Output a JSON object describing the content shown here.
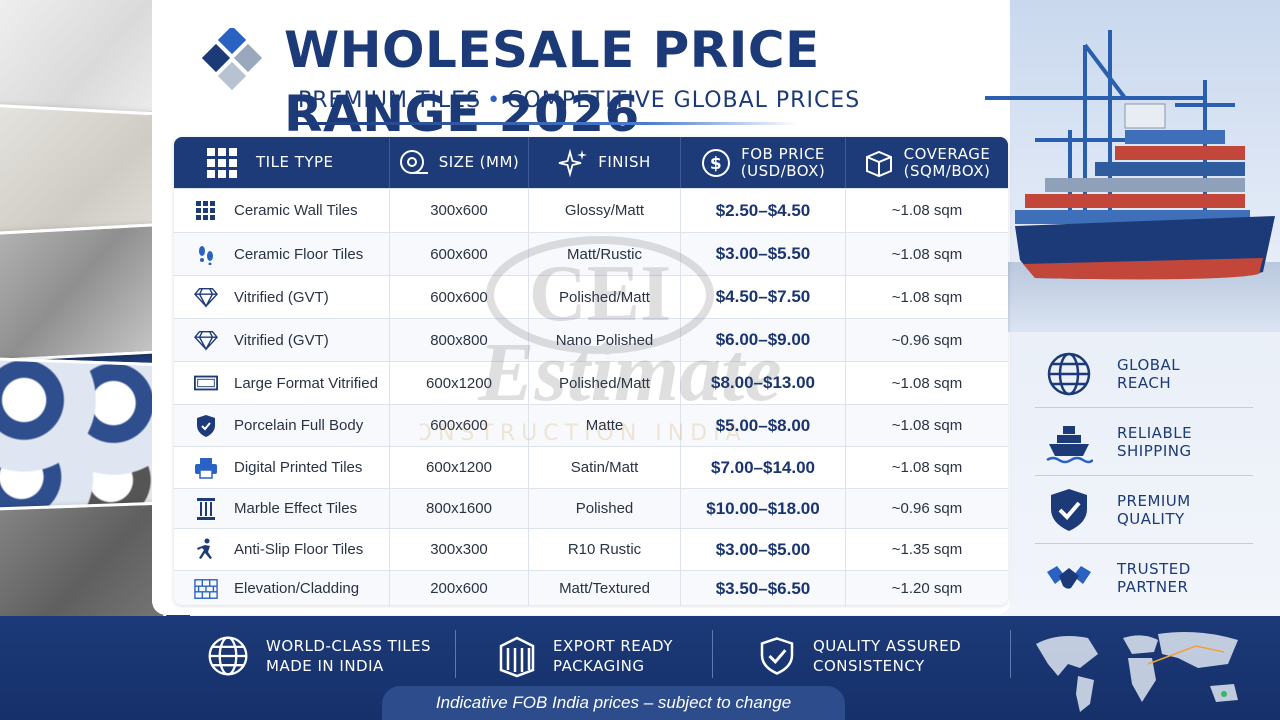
{
  "header": {
    "title": "WHOLESALE PRICE RANGE 2026",
    "subtitle_left": "PREMIUM TILES",
    "subtitle_sep": "•",
    "subtitle_right": "COMPETITIVE GLOBAL PRICES"
  },
  "table": {
    "columns": [
      {
        "label": "TILE TYPE",
        "icon": "grid-icon"
      },
      {
        "label": "SIZE (MM)",
        "icon": "tape-measure-icon"
      },
      {
        "label": "FINISH",
        "icon": "sparkle-icon"
      },
      {
        "label": "FOB PRICE (USD/BOX)",
        "line1": "FOB PRICE",
        "line2": "(USD/BOX)",
        "icon": "dollar-icon"
      },
      {
        "label": "COVERAGE (SQM/BOX)",
        "line1": "COVERAGE",
        "line2": "(SQM/BOX)",
        "icon": "box-icon"
      }
    ],
    "rows": [
      {
        "icon": "tiles-icon",
        "type": "Ceramic Wall Tiles",
        "size": "300x600",
        "finish": "Glossy/Matt",
        "price": "$2.50–$4.50",
        "coverage": "~1.08 sqm"
      },
      {
        "icon": "footprints-icon",
        "type": "Ceramic Floor Tiles",
        "size": "600x600",
        "finish": "Matt/Rustic",
        "price": "$3.00–$5.50",
        "coverage": "~1.08 sqm"
      },
      {
        "icon": "diamond-icon",
        "type": "Vitrified (GVT)",
        "size": "600x600",
        "finish": "Polished/Matt",
        "price": "$4.50–$7.50",
        "coverage": "~1.08 sqm"
      },
      {
        "icon": "diamond-icon",
        "type": "Vitrified (GVT)",
        "size": "800x800",
        "finish": "Nano Polished",
        "price": "$6.00–$9.00",
        "coverage": "~0.96 sqm"
      },
      {
        "icon": "large-slab-icon",
        "type": "Large Format Vitrified",
        "size": "600x1200",
        "finish": "Polished/Matt",
        "price": "$8.00–$13.00",
        "coverage": "~1.08 sqm"
      },
      {
        "icon": "shield-icon",
        "type": "Porcelain Full Body",
        "size": "600x600",
        "finish": "Matte",
        "price": "$5.00–$8.00",
        "coverage": "~1.08 sqm"
      },
      {
        "icon": "printer-icon",
        "type": "Digital Printed Tiles",
        "size": "600x1200",
        "finish": "Satin/Matt",
        "price": "$7.00–$14.00",
        "coverage": "~1.08 sqm"
      },
      {
        "icon": "column-icon",
        "type": "Marble Effect Tiles",
        "size": "800x1600",
        "finish": "Polished",
        "price": "$10.00–$18.00",
        "coverage": "~0.96 sqm"
      },
      {
        "icon": "anti-slip-icon",
        "type": "Anti-Slip Floor Tiles",
        "size": "300x300",
        "finish": "R10 Rustic",
        "price": "$3.00–$5.00",
        "coverage": "~1.35 sqm"
      },
      {
        "icon": "brick-wall-icon",
        "type": "Elevation/Cladding",
        "size": "200x600",
        "finish": "Matt/Textured",
        "price": "$3.50–$6.50",
        "coverage": "~1.20 sqm"
      }
    ]
  },
  "watermark": {
    "brand": "CEI",
    "word": "Estimate",
    "tagline": "CONSTRUCTION INDIA"
  },
  "features": [
    {
      "icon": "globe-icon",
      "line1": "GLOBAL",
      "line2": "REACH"
    },
    {
      "icon": "ship-icon",
      "line1": "RELIABLE",
      "line2": "SHIPPING"
    },
    {
      "icon": "shield-check-icon",
      "line1": "PREMIUM",
      "line2": "QUALITY"
    },
    {
      "icon": "handshake-icon",
      "line1": "TRUSTED",
      "line2": "PARTNER"
    }
  ],
  "footer": {
    "items": [
      {
        "icon": "globe-icon",
        "line1": "WORLD-CLASS TILES",
        "line2": "MADE IN INDIA"
      },
      {
        "icon": "container-icon",
        "line1": "EXPORT READY",
        "line2": "PACKAGING"
      },
      {
        "icon": "shield-check-icon",
        "line1": "QUALITY ASSURED",
        "line2": "CONSISTENCY"
      }
    ],
    "note": "Indicative FOB India prices – subject to change"
  },
  "colors": {
    "primary": "#1c3a78",
    "accent": "#2a62c4",
    "price": "#1a3470"
  }
}
